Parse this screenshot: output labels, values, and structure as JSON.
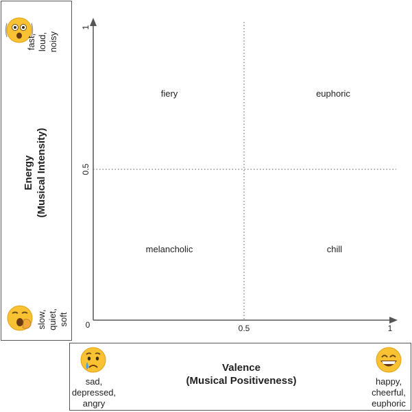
{
  "y_axis": {
    "title_line1": "Energy",
    "title_line2": "(Musical Intensity)",
    "top_descriptor": [
      "fast,",
      "loud,",
      "noisy"
    ],
    "bottom_descriptor": [
      "slow,",
      "quiet,",
      "soft"
    ],
    "top_icon": "shaking-face-emoji-icon",
    "bottom_icon": "yawning-face-emoji-icon",
    "ticks": [
      "0",
      "0.5",
      "1"
    ]
  },
  "x_axis": {
    "title_line1": "Valence",
    "title_line2": "(Musical Positiveness)",
    "left_descriptor": [
      "sad,",
      "depressed,",
      "angry"
    ],
    "right_descriptor": [
      "happy,",
      "cheerful,",
      "euphoric"
    ],
    "left_icon": "crying-face-emoji-icon",
    "right_icon": "grinning-face-emoji-icon",
    "ticks": [
      "0.5",
      "1"
    ]
  },
  "quadrants": {
    "top_left": "fiery",
    "top_right": "euphoric",
    "bottom_left": "melancholic",
    "bottom_right": "chill"
  },
  "colors": {
    "axis": "#555555",
    "emoji_face": "#F9C233",
    "emoji_outline": "#E0A218",
    "tear": "#4AA3E8"
  }
}
